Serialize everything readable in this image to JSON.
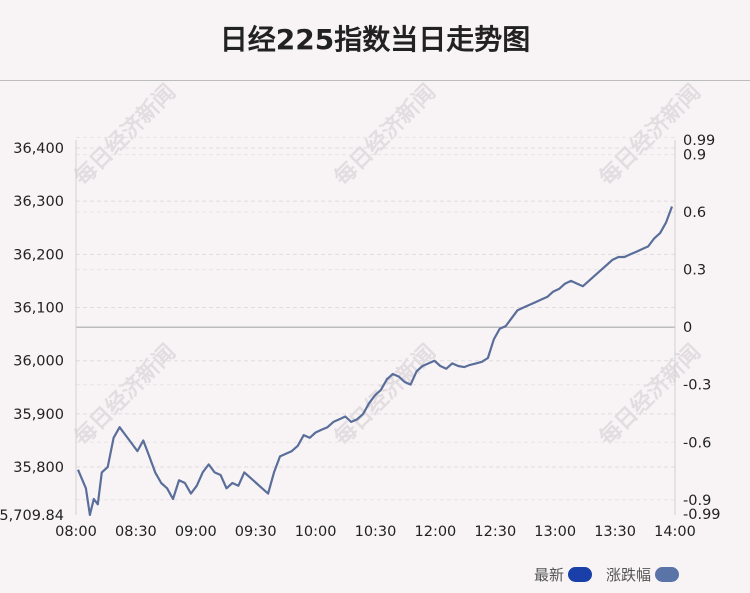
{
  "title": "日经225指数当日走势图",
  "watermark": "每日经济新闻",
  "legend": [
    {
      "label": "最新",
      "color": "#1a3fa8"
    },
    {
      "label": "涨跌幅",
      "color": "#5a74a8"
    }
  ],
  "chart_data": {
    "type": "line",
    "title": "日经225指数当日走势图",
    "x_ticks": [
      "08:00",
      "08:30",
      "09:00",
      "09:30",
      "10:00",
      "10:30",
      "12:00",
      "12:30",
      "13:00",
      "13:30",
      "14:00"
    ],
    "y_left": {
      "ticks": [
        36400,
        36300,
        36200,
        36100,
        36000,
        35900,
        35800
      ],
      "tick_labels": [
        "36,400",
        "36,300",
        "36,200",
        "36,100",
        "36,000",
        "35,900",
        "35,800"
      ],
      "min_label": "35,709.84",
      "min": 35709.84,
      "max": 36415
    },
    "y_right": {
      "ticks": [
        0.99,
        0.9,
        0.6,
        0.3,
        0,
        -0.3,
        -0.6,
        -0.9,
        -0.99
      ],
      "tick_labels": [
        "0.99",
        "0.9",
        "0.6",
        "0.3",
        "0",
        "-0.3",
        "-0.6",
        "-0.9",
        "-0.99"
      ]
    },
    "baseline": 36063,
    "grid": "horizontal-dashed",
    "series": [
      {
        "color": "#5a6e9a",
        "x": [
          0,
          0.4,
          0.6,
          0.8,
          1,
          1.2,
          1.5,
          1.8,
          2.1,
          2.4,
          2.7,
          3.0,
          3.3,
          3.6,
          3.9,
          4.2,
          4.5,
          4.8,
          5.1,
          5.4,
          5.7,
          6.0,
          6.3,
          6.6,
          6.9,
          7.2,
          7.5,
          7.8,
          8.1,
          8.4,
          8.7,
          9.0,
          9.3,
          9.6,
          9.9,
          10.2,
          10.5,
          10.8,
          11.1,
          11.4,
          11.7,
          12.0,
          12.3,
          12.6,
          12.9,
          13.2,
          13.5,
          13.8,
          14.1,
          14.4,
          14.7,
          15.0,
          15.3,
          15.6,
          15.9,
          16.2,
          16.5,
          16.8,
          17.1,
          17.4,
          17.7,
          18.0,
          18.3,
          18.6,
          18.9,
          19.2,
          19.5,
          19.8,
          20.1,
          20.4,
          20.7,
          21.0,
          21.3,
          21.6,
          21.9,
          22.2,
          22.5,
          22.8,
          23.1,
          23.4,
          23.7,
          24.0,
          24.3,
          24.6,
          24.9,
          25.2,
          25.5,
          25.8,
          26.1,
          26.4,
          26.7,
          27.0,
          27.3,
          27.6,
          27.9,
          28.2,
          28.5,
          28.8,
          29.1,
          29.4,
          29.7,
          30.0
        ],
        "values": [
          35795,
          35760,
          35710,
          35740,
          35730,
          35790,
          35800,
          35855,
          35875,
          35860,
          35845,
          35830,
          35850,
          35820,
          35790,
          35770,
          35760,
          35740,
          35775,
          35770,
          35750,
          35765,
          35790,
          35805,
          35790,
          35785,
          35760,
          35770,
          35765,
          35790,
          35780,
          35770,
          35760,
          35750,
          35790,
          35820,
          35825,
          35830,
          35840,
          35860,
          35855,
          35865,
          35870,
          35875,
          35885,
          35890,
          35895,
          35885,
          35890,
          35900,
          35920,
          35935,
          35945,
          35965,
          35975,
          35970,
          35960,
          35955,
          35980,
          35990,
          35995,
          36000,
          35990,
          35985,
          35995,
          35990,
          35988,
          35992,
          35995,
          35998,
          36005,
          36040,
          36060,
          36065,
          36080,
          36095,
          36100,
          36105,
          36110,
          36115,
          36120,
          36130,
          36135,
          36145,
          36150,
          36145,
          36140,
          36150,
          36160,
          36170,
          36180,
          36190,
          36195,
          36195,
          36200,
          36205,
          36210,
          36215,
          36230,
          36240,
          36260,
          36290
        ]
      }
    ]
  }
}
